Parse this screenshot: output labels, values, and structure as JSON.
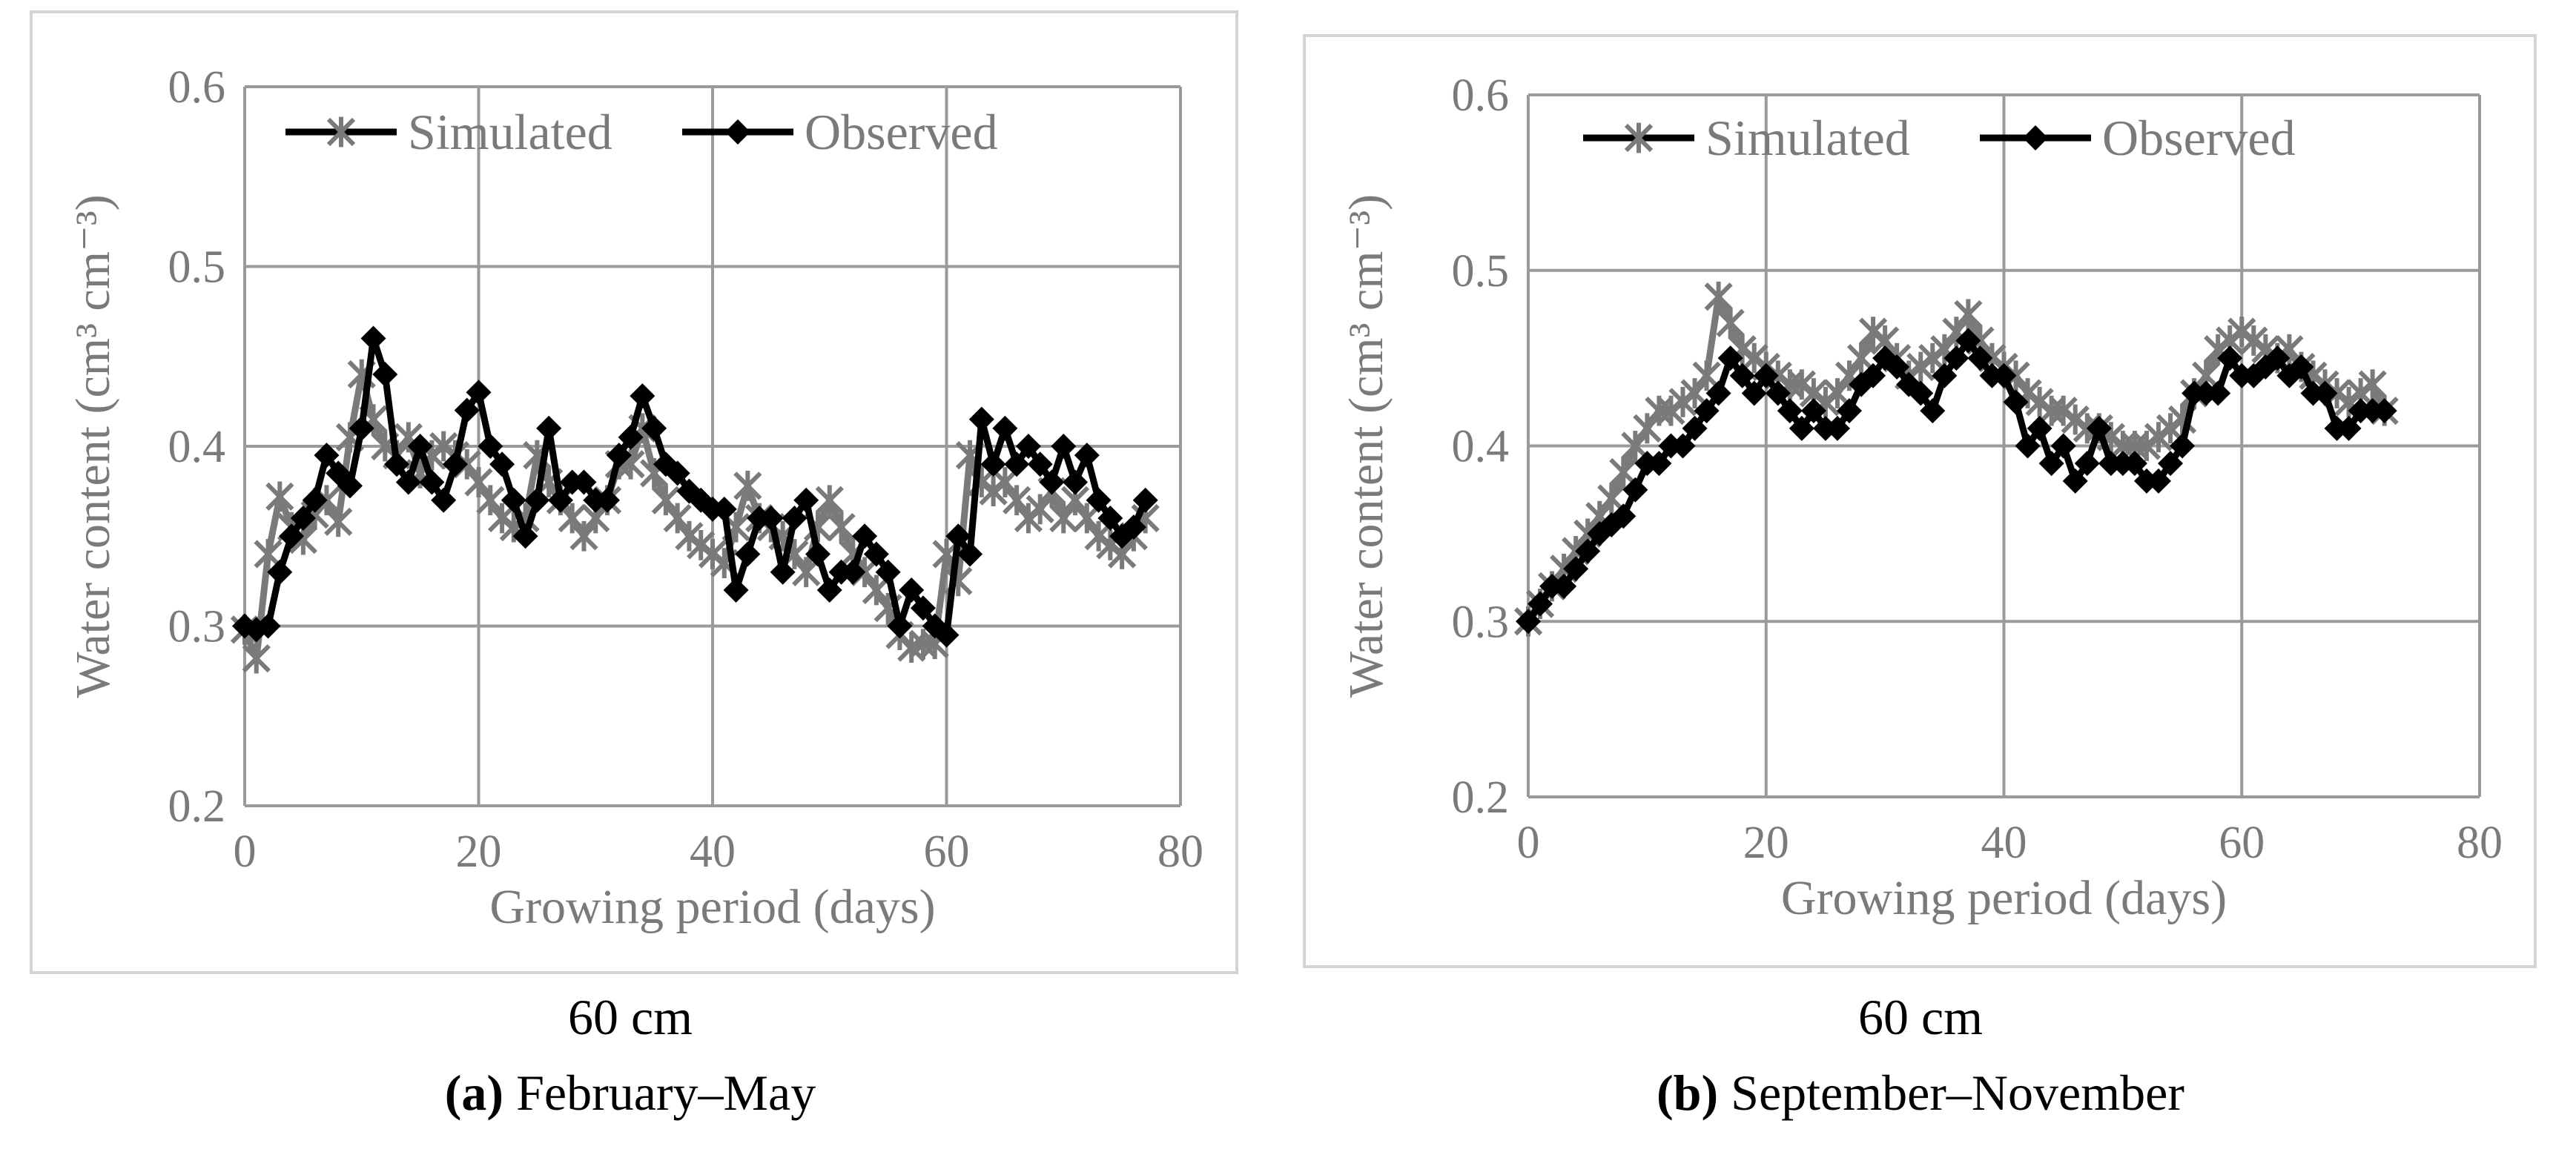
{
  "colors": {
    "simulated": "#7a7a7a",
    "observed": "#000000",
    "grid": "#9a9a9a",
    "frame": "#d4d4d4",
    "text": "#7a7a7a"
  },
  "chart_data": [
    {
      "type": "line",
      "panel": "a",
      "ylabel": "Water content (cm³ cm⁻³)",
      "xlabel": "Growing period (days)",
      "xlim": [
        0,
        80
      ],
      "ylim": [
        0.2,
        0.6
      ],
      "xticks": [
        "0",
        "20",
        "40",
        "60",
        "80"
      ],
      "yticks": [
        "0.2",
        "0.3",
        "0.4",
        "0.5",
        "0.6"
      ],
      "legend": [
        "Simulated",
        "Observed"
      ],
      "legend_position": "top",
      "grid": true,
      "depth_label": "60 cm",
      "caption_letter": "(a)",
      "caption_text": " February–May",
      "series": [
        {
          "name": "Simulated",
          "marker": "star",
          "x": [
            0,
            1,
            2,
            3,
            4,
            5,
            6,
            7,
            8,
            9,
            10,
            11,
            12,
            13,
            14,
            15,
            16,
            17,
            18,
            19,
            20,
            21,
            22,
            23,
            24,
            25,
            26,
            27,
            28,
            29,
            30,
            31,
            32,
            33,
            34,
            35,
            36,
            37,
            38,
            39,
            40,
            41,
            42,
            43,
            44,
            45,
            46,
            47,
            48,
            49,
            50,
            51,
            52,
            53,
            54,
            55,
            56,
            57,
            58,
            59,
            60,
            61,
            62,
            63,
            64,
            65,
            66,
            67,
            68,
            69,
            70,
            71,
            72,
            73,
            74,
            75,
            76,
            77
          ],
          "y": [
            0.298,
            0.282,
            0.34,
            0.372,
            0.355,
            0.348,
            0.362,
            0.37,
            0.358,
            0.405,
            0.44,
            0.415,
            0.4,
            0.395,
            0.405,
            0.385,
            0.395,
            0.4,
            0.395,
            0.39,
            0.38,
            0.37,
            0.36,
            0.355,
            0.36,
            0.395,
            0.38,
            0.37,
            0.36,
            0.35,
            0.36,
            0.37,
            0.39,
            0.39,
            0.41,
            0.385,
            0.37,
            0.36,
            0.35,
            0.345,
            0.34,
            0.335,
            0.355,
            0.378,
            0.36,
            0.355,
            0.35,
            0.34,
            0.33,
            0.355,
            0.37,
            0.355,
            0.34,
            0.33,
            0.32,
            0.31,
            0.295,
            0.288,
            0.29,
            0.29,
            0.34,
            0.325,
            0.395,
            0.38,
            0.375,
            0.38,
            0.37,
            0.36,
            0.365,
            0.375,
            0.36,
            0.37,
            0.36,
            0.35,
            0.345,
            0.34,
            0.35,
            0.36
          ]
        },
        {
          "name": "Observed",
          "marker": "diamond",
          "x": [
            0,
            1,
            2,
            3,
            4,
            5,
            6,
            7,
            8,
            9,
            10,
            11,
            12,
            13,
            14,
            15,
            16,
            17,
            18,
            19,
            20,
            21,
            22,
            23,
            24,
            25,
            26,
            27,
            28,
            29,
            30,
            31,
            32,
            33,
            34,
            35,
            36,
            37,
            38,
            39,
            40,
            41,
            42,
            43,
            44,
            45,
            46,
            47,
            48,
            49,
            50,
            51,
            52,
            53,
            54,
            55,
            56,
            57,
            58,
            59,
            60,
            61,
            62,
            63,
            64,
            65,
            66,
            67,
            68,
            69,
            70,
            71,
            72,
            73,
            74,
            75,
            76,
            77
          ],
          "y": [
            0.3,
            0.298,
            0.3,
            0.33,
            0.35,
            0.36,
            0.37,
            0.395,
            0.385,
            0.378,
            0.41,
            0.46,
            0.44,
            0.39,
            0.38,
            0.4,
            0.38,
            0.37,
            0.39,
            0.42,
            0.43,
            0.4,
            0.39,
            0.37,
            0.35,
            0.37,
            0.41,
            0.37,
            0.38,
            0.38,
            0.37,
            0.37,
            0.395,
            0.405,
            0.428,
            0.41,
            0.39,
            0.385,
            0.375,
            0.37,
            0.365,
            0.365,
            0.32,
            0.34,
            0.36,
            0.36,
            0.33,
            0.36,
            0.37,
            0.34,
            0.32,
            0.33,
            0.33,
            0.35,
            0.34,
            0.33,
            0.3,
            0.32,
            0.31,
            0.3,
            0.295,
            0.35,
            0.34,
            0.415,
            0.39,
            0.41,
            0.39,
            0.4,
            0.39,
            0.38,
            0.4,
            0.38,
            0.395,
            0.37,
            0.36,
            0.35,
            0.355,
            0.37
          ]
        }
      ]
    },
    {
      "type": "line",
      "panel": "b",
      "ylabel": "Water content (cm³ cm⁻³)",
      "xlabel": "Growing period (days)",
      "xlim": [
        0,
        80
      ],
      "ylim": [
        0.2,
        0.6
      ],
      "xticks": [
        "0",
        "20",
        "40",
        "60",
        "80"
      ],
      "yticks": [
        "0.2",
        "0.3",
        "0.4",
        "0.5",
        "0.6"
      ],
      "legend": [
        "Simulated",
        "Observed"
      ],
      "legend_position": "top",
      "grid": true,
      "depth_label": "60 cm",
      "caption_letter": "(b)",
      "caption_text": " September–November",
      "series": [
        {
          "name": "Simulated",
          "marker": "star",
          "x": [
            0,
            1,
            2,
            3,
            4,
            5,
            6,
            7,
            8,
            9,
            10,
            11,
            12,
            13,
            14,
            15,
            16,
            17,
            18,
            19,
            20,
            21,
            22,
            23,
            24,
            25,
            26,
            27,
            28,
            29,
            30,
            31,
            32,
            33,
            34,
            35,
            36,
            37,
            38,
            39,
            40,
            41,
            42,
            43,
            44,
            45,
            46,
            47,
            48,
            49,
            50,
            51,
            52,
            53,
            54,
            55,
            56,
            57,
            58,
            59,
            60,
            61,
            62,
            63,
            64,
            65,
            66,
            67,
            68,
            69,
            70,
            71,
            72
          ],
          "y": [
            0.3,
            0.31,
            0.32,
            0.33,
            0.34,
            0.35,
            0.36,
            0.37,
            0.385,
            0.4,
            0.41,
            0.42,
            0.42,
            0.425,
            0.43,
            0.44,
            0.485,
            0.47,
            0.455,
            0.45,
            0.445,
            0.44,
            0.435,
            0.435,
            0.43,
            0.425,
            0.43,
            0.44,
            0.45,
            0.465,
            0.46,
            0.45,
            0.44,
            0.445,
            0.45,
            0.455,
            0.465,
            0.475,
            0.46,
            0.45,
            0.445,
            0.44,
            0.43,
            0.425,
            0.42,
            0.42,
            0.415,
            0.41,
            0.41,
            0.405,
            0.4,
            0.4,
            0.4,
            0.405,
            0.41,
            0.415,
            0.43,
            0.44,
            0.455,
            0.46,
            0.465,
            0.46,
            0.455,
            0.45,
            0.455,
            0.445,
            0.44,
            0.435,
            0.43,
            0.425,
            0.43,
            0.435,
            0.42
          ]
        },
        {
          "name": "Observed",
          "marker": "diamond",
          "x": [
            0,
            1,
            2,
            3,
            4,
            5,
            6,
            7,
            8,
            9,
            10,
            11,
            12,
            13,
            14,
            15,
            16,
            17,
            18,
            19,
            20,
            21,
            22,
            23,
            24,
            25,
            26,
            27,
            28,
            29,
            30,
            31,
            32,
            33,
            34,
            35,
            36,
            37,
            38,
            39,
            40,
            41,
            42,
            43,
            44,
            45,
            46,
            47,
            48,
            49,
            50,
            51,
            52,
            53,
            54,
            55,
            56,
            57,
            58,
            59,
            60,
            61,
            62,
            63,
            64,
            65,
            66,
            67,
            68,
            69,
            70,
            71,
            72
          ],
          "y": [
            0.3,
            0.31,
            0.32,
            0.32,
            0.33,
            0.34,
            0.35,
            0.355,
            0.36,
            0.375,
            0.39,
            0.39,
            0.4,
            0.4,
            0.41,
            0.42,
            0.43,
            0.45,
            0.44,
            0.43,
            0.44,
            0.43,
            0.42,
            0.41,
            0.42,
            0.41,
            0.41,
            0.42,
            0.435,
            0.44,
            0.45,
            0.445,
            0.435,
            0.43,
            0.42,
            0.44,
            0.45,
            0.46,
            0.45,
            0.44,
            0.44,
            0.425,
            0.4,
            0.41,
            0.39,
            0.4,
            0.38,
            0.39,
            0.41,
            0.39,
            0.39,
            0.39,
            0.38,
            0.38,
            0.39,
            0.4,
            0.43,
            0.43,
            0.43,
            0.45,
            0.44,
            0.44,
            0.445,
            0.45,
            0.44,
            0.445,
            0.43,
            0.43,
            0.41,
            0.41,
            0.42,
            0.42,
            0.42
          ]
        }
      ]
    }
  ]
}
